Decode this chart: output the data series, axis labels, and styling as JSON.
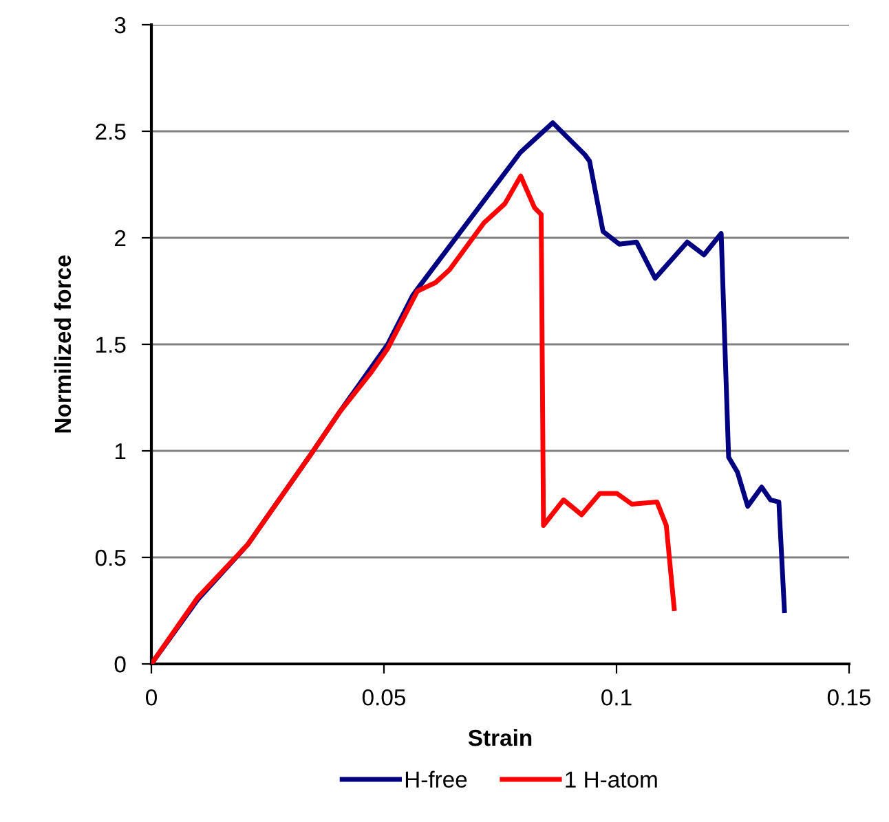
{
  "chart_data": {
    "type": "line",
    "xlabel": "Strain",
    "ylabel": "Normilized force",
    "xlim": [
      0,
      0.15
    ],
    "xticks": [
      0,
      0.05,
      0.1,
      0.15
    ],
    "ylim": [
      0,
      3
    ],
    "yticks": [
      0,
      0.5,
      1,
      1.5,
      2,
      2.5,
      3
    ],
    "grid": "y",
    "legend": "bottom",
    "line_style": "solid",
    "marker": "none",
    "series": [
      {
        "name": "H-free",
        "color": "#000080",
        "x": [
          0,
          0.0099,
          0.0207,
          0.0345,
          0.0404,
          0.0508,
          0.0562,
          0.0572,
          0.0793,
          0.0863,
          0.0932,
          0.0942,
          0.0971,
          0.1006,
          0.1043,
          0.1083,
          0.1152,
          0.1188,
          0.1225,
          0.1241,
          0.126,
          0.1282,
          0.1312,
          0.1331,
          0.1349,
          0.1361
        ],
        "values": [
          0,
          0.3,
          0.56,
          0.99,
          1.18,
          1.5,
          1.73,
          1.76,
          2.4,
          2.54,
          2.39,
          2.36,
          2.03,
          1.97,
          1.98,
          1.81,
          1.98,
          1.92,
          2.02,
          0.97,
          0.9,
          0.74,
          0.83,
          0.77,
          0.76,
          0.25
        ]
      },
      {
        "name": "1 H-atom",
        "color": "#ff0000",
        "x": [
          0,
          0.0099,
          0.0207,
          0.0345,
          0.0404,
          0.0473,
          0.0508,
          0.0572,
          0.0611,
          0.0641,
          0.0715,
          0.076,
          0.0794,
          0.0824,
          0.0838,
          0.0843,
          0.0886,
          0.0925,
          0.0964,
          0.1001,
          0.1033,
          0.1087,
          0.1107,
          0.1124
        ],
        "values": [
          0,
          0.31,
          0.56,
          0.99,
          1.18,
          1.37,
          1.48,
          1.75,
          1.79,
          1.85,
          2.07,
          2.16,
          2.29,
          2.14,
          2.11,
          0.65,
          0.77,
          0.7,
          0.8,
          0.8,
          0.75,
          0.76,
          0.65,
          0.26
        ]
      }
    ]
  }
}
